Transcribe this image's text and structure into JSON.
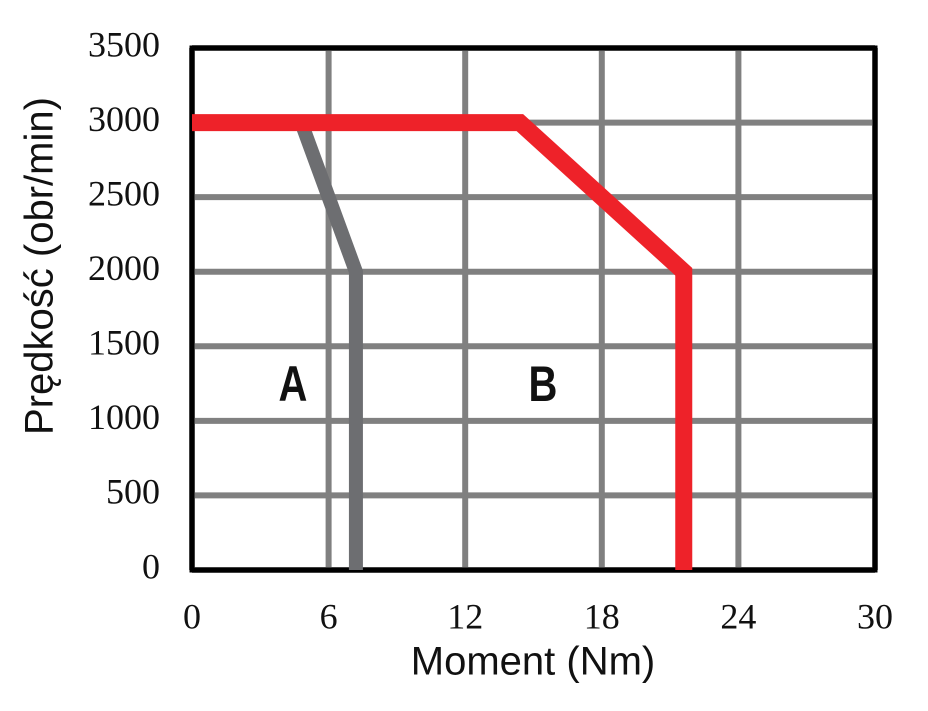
{
  "chart_data": {
    "type": "line",
    "xlabel": "Moment (Nm)",
    "ylabel": "Prędkość (obr/min)",
    "xlim": [
      0,
      30
    ],
    "ylim": [
      0,
      3500
    ],
    "xticks": [
      0,
      6,
      12,
      18,
      24,
      30
    ],
    "yticks": [
      0,
      500,
      1000,
      1500,
      2000,
      2500,
      3000,
      3500
    ],
    "grid": true,
    "series": [
      {
        "name": "A",
        "color": "#6d6e71",
        "x": [
          4.8,
          7.2,
          7.2
        ],
        "values": [
          3000,
          2000,
          0
        ]
      },
      {
        "name": "B",
        "color": "#ee2229",
        "x": [
          0,
          14.4,
          21.6,
          21.6
        ],
        "values": [
          3000,
          3000,
          2000,
          0
        ]
      }
    ],
    "annotations": [
      "A",
      "B"
    ]
  }
}
